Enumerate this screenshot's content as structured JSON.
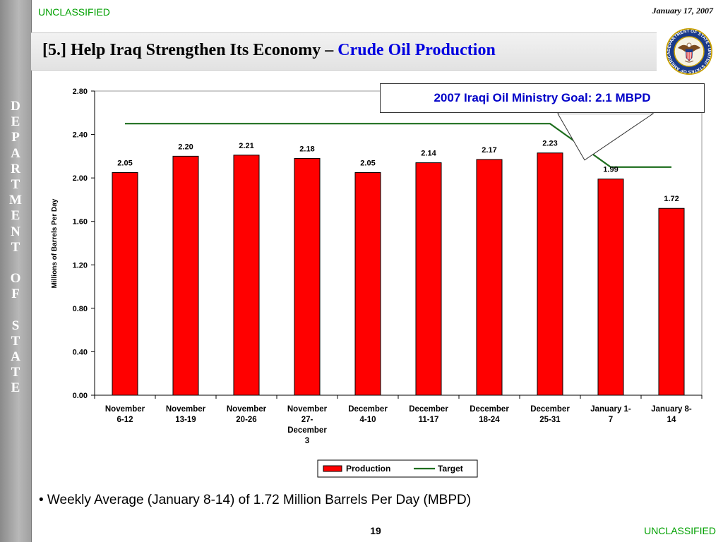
{
  "header": {
    "classification": "UNCLASSIFIED",
    "date": "January 17, 2007",
    "title_main": "[5.] Help Iraq Strengthen Its Economy – ",
    "title_accent": "Crude Oil Production"
  },
  "sidebar": {
    "letters": [
      "D",
      "E",
      "P",
      "A",
      "R",
      "T",
      "M",
      "E",
      "N",
      "T",
      "",
      "O",
      "F",
      "",
      "S",
      "T",
      "A",
      "T",
      "E"
    ]
  },
  "seal": {
    "text": "DEPARTMENT OF STATE • UNITED STATES OF AMERICA"
  },
  "callout": {
    "text": "2007 Iraqi Oil Ministry Goal:  2.1 MBPD"
  },
  "chart_data": {
    "type": "bar",
    "ylabel": "Millions of Barrels Per Day",
    "ylim": [
      0,
      2.8
    ],
    "yticks": [
      "0.00",
      "0.40",
      "0.80",
      "1.20",
      "1.60",
      "2.00",
      "2.40",
      "2.80"
    ],
    "categories": [
      [
        "November",
        "6-12"
      ],
      [
        "November",
        "13-19"
      ],
      [
        "November",
        "20-26"
      ],
      [
        "November",
        "27-",
        "December",
        "3"
      ],
      [
        "December",
        "4-10"
      ],
      [
        "December",
        "11-17"
      ],
      [
        "December",
        "18-24"
      ],
      [
        "December",
        "25-31"
      ],
      [
        "January 1-",
        "7"
      ],
      [
        "January 8-",
        "14"
      ]
    ],
    "series": [
      {
        "name": "Production",
        "type": "bar",
        "color": "#ff0000",
        "values": [
          2.05,
          2.2,
          2.21,
          2.18,
          2.05,
          2.14,
          2.17,
          2.23,
          1.99,
          1.72
        ],
        "labels": [
          "2.05",
          "2.20",
          "2.21",
          "2.18",
          "2.05",
          "2.14",
          "2.17",
          "2.23",
          "1.99",
          "1.72"
        ]
      },
      {
        "name": "Target",
        "type": "line",
        "color": "#1e6e1e",
        "values": [
          2.5,
          2.5,
          2.5,
          2.5,
          2.5,
          2.5,
          2.5,
          2.5,
          2.1,
          2.1
        ]
      }
    ],
    "legend_position": "bottom-right"
  },
  "footer": {
    "bullet": "• Weekly Average (January 8-14) of 1.72 Million Barrels Per Day (MBPD)",
    "page_number": "19",
    "classification": "UNCLASSIFIED"
  }
}
